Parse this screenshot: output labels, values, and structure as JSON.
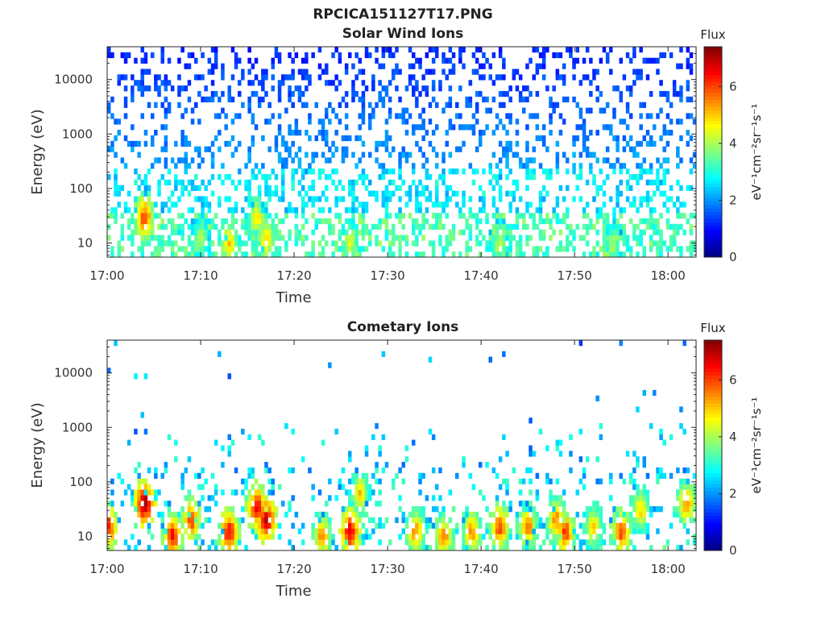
{
  "figure_title": "RPCICA151127T17.PNG",
  "colors": {
    "cmap": [
      "#00007f",
      "#0000ff",
      "#007fff",
      "#00ffff",
      "#7fff7f",
      "#ffff00",
      "#ff7f00",
      "#ff0000",
      "#7f0000"
    ],
    "axis": "#262626"
  },
  "colorbar": {
    "label": "Flux",
    "unit_label": "eV⁻¹cm⁻²sr⁻¹s⁻¹",
    "ticks": [
      "0",
      "2",
      "4",
      "6"
    ],
    "range": [
      0,
      7.4
    ]
  },
  "chart_data": [
    {
      "type": "heatmap",
      "title": "Solar Wind Ions",
      "xlabel": "Time",
      "ylabel": "Energy (eV)",
      "x_ticks": [
        "17:00",
        "17:10",
        "17:20",
        "17:30",
        "17:40",
        "17:50",
        "18:00"
      ],
      "y_ticks": [
        "10",
        "100",
        "1000",
        "10000"
      ],
      "y_scale": "log",
      "ylim": [
        5.5,
        40000
      ],
      "xlim": [
        "17:00",
        "18:03"
      ],
      "hotspots": [
        {
          "t": "17:04",
          "e": 30,
          "v": 6.0
        },
        {
          "t": "17:10",
          "e": 12,
          "v": 4.2
        },
        {
          "t": "17:13",
          "e": 10,
          "v": 5.0
        },
        {
          "t": "17:16",
          "e": 30,
          "v": 4.8
        },
        {
          "t": "17:17",
          "e": 12,
          "v": 5.0
        },
        {
          "t": "17:26",
          "e": 10,
          "v": 4.5
        },
        {
          "t": "17:42",
          "e": 10,
          "v": 4.2
        },
        {
          "t": "17:54",
          "e": 10,
          "v": 4.0
        }
      ]
    },
    {
      "type": "heatmap",
      "title": "Cometary Ions",
      "xlabel": "Time",
      "ylabel": "Energy (eV)",
      "x_ticks": [
        "17:00",
        "17:10",
        "17:20",
        "17:30",
        "17:40",
        "17:50",
        "18:00"
      ],
      "y_ticks": [
        "10",
        "100",
        "1000",
        "10000"
      ],
      "y_scale": "log",
      "ylim": [
        5.5,
        40000
      ],
      "xlim": [
        "17:00",
        "18:03"
      ],
      "hotspots": [
        {
          "t": "17:00",
          "e": 15,
          "v": 6.5
        },
        {
          "t": "17:04",
          "e": 40,
          "v": 7.2
        },
        {
          "t": "17:07",
          "e": 10,
          "v": 6.5
        },
        {
          "t": "17:09",
          "e": 20,
          "v": 6.0
        },
        {
          "t": "17:13",
          "e": 12,
          "v": 6.5
        },
        {
          "t": "17:16",
          "e": 35,
          "v": 6.5
        },
        {
          "t": "17:17",
          "e": 20,
          "v": 7.0
        },
        {
          "t": "17:23",
          "e": 10,
          "v": 5.5
        },
        {
          "t": "17:26",
          "e": 12,
          "v": 6.8
        },
        {
          "t": "17:27",
          "e": 60,
          "v": 5.0
        },
        {
          "t": "17:33",
          "e": 12,
          "v": 5.5
        },
        {
          "t": "17:36",
          "e": 10,
          "v": 5.5
        },
        {
          "t": "17:39",
          "e": 12,
          "v": 5.5
        },
        {
          "t": "17:42",
          "e": 15,
          "v": 6.0
        },
        {
          "t": "17:45",
          "e": 15,
          "v": 5.5
        },
        {
          "t": "17:48",
          "e": 20,
          "v": 5.5
        },
        {
          "t": "17:49",
          "e": 12,
          "v": 6.0
        },
        {
          "t": "17:52",
          "e": 15,
          "v": 5.0
        },
        {
          "t": "17:55",
          "e": 12,
          "v": 6.0
        },
        {
          "t": "17:57",
          "e": 30,
          "v": 5.0
        },
        {
          "t": "18:02",
          "e": 40,
          "v": 5.5
        }
      ]
    }
  ]
}
